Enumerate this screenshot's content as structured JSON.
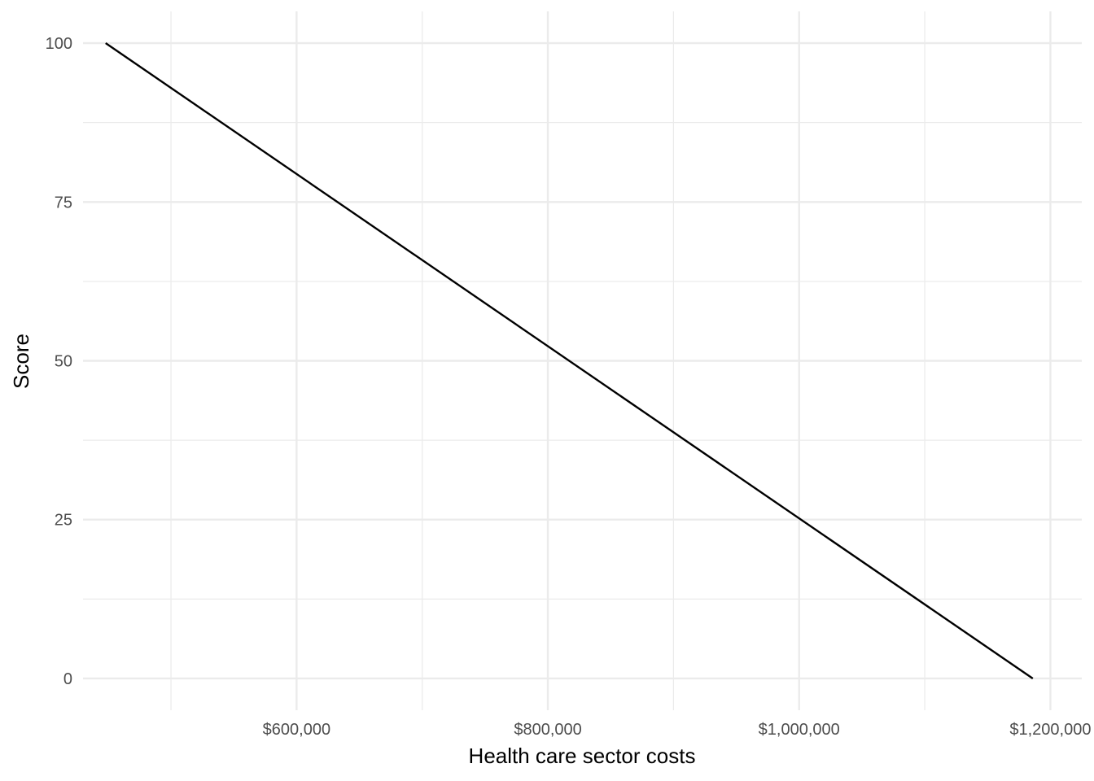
{
  "chart_data": {
    "type": "line",
    "title": "",
    "xlabel": "Health care sector costs",
    "ylabel": "Score",
    "x_ticks": [
      600000,
      800000,
      1000000,
      1200000
    ],
    "x_tick_labels": [
      "$600,000",
      "$800,000",
      "$1,000,000",
      "$1,200,000"
    ],
    "y_ticks": [
      0,
      25,
      50,
      75,
      100
    ],
    "y_tick_labels": [
      "0",
      "25",
      "50",
      "75",
      "100"
    ],
    "xlim": [
      430000,
      1225000
    ],
    "ylim": [
      -5,
      105
    ],
    "grid": true,
    "series": [
      {
        "x": [
          448000,
          1186000
        ],
        "y": [
          100,
          0
        ],
        "color": "#000000"
      }
    ]
  }
}
